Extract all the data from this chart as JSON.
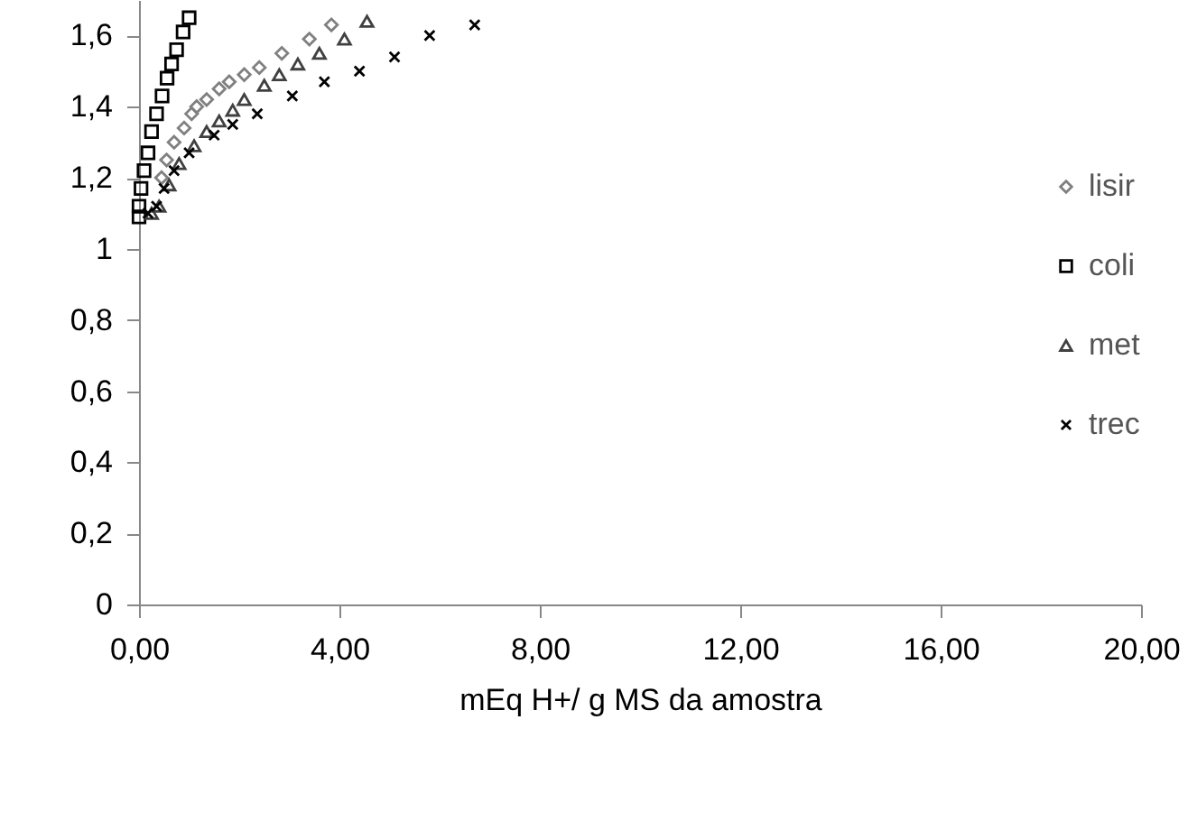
{
  "chart_data": {
    "type": "scatter",
    "xlabel": "mEq H+/ g MS da amostra",
    "xlim": [
      0,
      20
    ],
    "ylim": [
      0,
      1.7
    ],
    "xticks": [
      {
        "value": 0,
        "label": "0,00"
      },
      {
        "value": 4,
        "label": "4,00"
      },
      {
        "value": 8,
        "label": "8,00"
      },
      {
        "value": 12,
        "label": "12,00"
      },
      {
        "value": 16,
        "label": "16,00"
      },
      {
        "value": 20,
        "label": "20,00"
      }
    ],
    "yticks": [
      {
        "value": 0,
        "label": "0"
      },
      {
        "value": 0.2,
        "label": "0,2"
      },
      {
        "value": 0.4,
        "label": "0,4"
      },
      {
        "value": 0.6,
        "label": "0,6"
      },
      {
        "value": 0.8,
        "label": "0,8"
      },
      {
        "value": 1,
        "label": "1"
      },
      {
        "value": 1.2,
        "label": "1,2"
      },
      {
        "value": 1.4,
        "label": "1,4"
      },
      {
        "value": 1.6,
        "label": "1,6"
      }
    ],
    "grid": false,
    "legend": "right",
    "series": [
      {
        "name": "lisir",
        "color": "#808080",
        "marker": "diamond",
        "x": [
          0.45,
          0.55,
          0.7,
          0.9,
          1.05,
          1.15,
          1.35,
          1.6,
          1.8,
          2.1,
          2.4,
          2.85,
          3.4,
          3.84
        ],
        "values": [
          1.2,
          1.25,
          1.3,
          1.34,
          1.38,
          1.4,
          1.42,
          1.45,
          1.47,
          1.49,
          1.51,
          1.55,
          1.59,
          1.63
        ]
      },
      {
        "name": "coli",
        "color": "#000000",
        "marker": "square",
        "x": [
          0,
          0,
          0.04,
          0.1,
          0.18,
          0.25,
          0.35,
          0.46,
          0.56,
          0.65,
          0.75,
          0.88,
          1.0
        ],
        "values": [
          1.09,
          1.12,
          1.17,
          1.22,
          1.27,
          1.33,
          1.38,
          1.43,
          1.48,
          1.52,
          1.56,
          1.61,
          1.65
        ]
      },
      {
        "name": "met",
        "color": "#404040",
        "marker": "triangle",
        "x": [
          0.25,
          0.4,
          0.6,
          0.8,
          1.1,
          1.35,
          1.6,
          1.87,
          2.1,
          2.5,
          2.8,
          3.17,
          3.6,
          4.1,
          4.55
        ],
        "values": [
          1.1,
          1.12,
          1.18,
          1.24,
          1.29,
          1.33,
          1.36,
          1.39,
          1.42,
          1.46,
          1.49,
          1.52,
          1.55,
          1.59,
          1.64
        ]
      },
      {
        "name": "trec",
        "color": "#000000",
        "marker": "cross",
        "x": [
          0.18,
          0.35,
          0.5,
          0.7,
          1.0,
          1.5,
          1.87,
          2.36,
          3.06,
          3.7,
          4.4,
          5.1,
          5.8,
          6.7
        ],
        "values": [
          1.1,
          1.12,
          1.17,
          1.22,
          1.27,
          1.32,
          1.35,
          1.38,
          1.43,
          1.47,
          1.5,
          1.54,
          1.6,
          1.63
        ]
      }
    ]
  }
}
